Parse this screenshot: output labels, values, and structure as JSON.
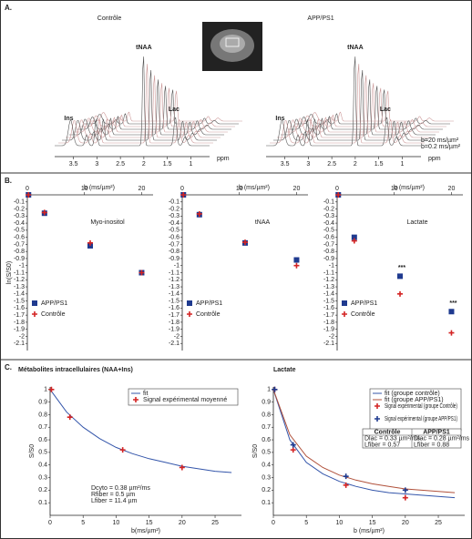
{
  "panel_a": {
    "label": "A.",
    "titles": [
      "Contrôle",
      "APP/PS1"
    ],
    "peaks": [
      "Ins",
      "tNAA",
      "Lac"
    ],
    "x_label": "ppm",
    "xlim": [
      3.9,
      0.6
    ],
    "xticks": [
      3.5,
      3,
      2.5,
      2,
      1.5,
      1
    ],
    "b_labels": [
      "b=20 ms/µm²",
      "b=0.2 ms/µm²"
    ]
  },
  "panel_b": {
    "label": "B."
  },
  "panel_c": {
    "label": "C."
  },
  "chart_data": [
    {
      "type": "scatter",
      "title": "Myo-inositol",
      "x_label": "b (ms/µm²)",
      "y_label": "ln(S/S0)",
      "xlim": [
        0,
        22
      ],
      "xticks": [
        0,
        10,
        20
      ],
      "ylim": [
        -2.2,
        0
      ],
      "yticks": [
        -0.1,
        -0.2,
        -0.3,
        -0.4,
        -0.5,
        -0.6,
        -0.7,
        -0.8,
        -0.9,
        -1,
        -1.1,
        -1.2,
        -1.3,
        -1.4,
        -1.5,
        -1.6,
        -1.7,
        -1.8,
        -1.9,
        -2,
        -2.1
      ],
      "x": [
        0.2,
        3,
        11,
        20
      ],
      "legend": "lower left",
      "series": [
        {
          "name": "APP/PS1",
          "color": "#1f3a8f",
          "marker": "square",
          "values": [
            0,
            -0.26,
            -0.72,
            -1.1
          ]
        },
        {
          "name": "Contrôle",
          "color": "#d42424",
          "marker": "plus",
          "values": [
            0,
            -0.25,
            -0.68,
            -1.1
          ]
        }
      ]
    },
    {
      "type": "scatter",
      "title": "tNAA",
      "x_label": "b (ms/µm²)",
      "xlim": [
        0,
        22
      ],
      "xticks": [
        0,
        10,
        20
      ],
      "ylim": [
        -2.2,
        0
      ],
      "yticks": [
        -0.1,
        -0.2,
        -0.3,
        -0.4,
        -0.5,
        -0.6,
        -0.7,
        -0.8,
        -0.9,
        -1,
        -1.1,
        -1.2,
        -1.3,
        -1.4,
        -1.5,
        -1.6,
        -1.7,
        -1.8,
        -1.9,
        -2,
        -2.1
      ],
      "x": [
        0.2,
        3,
        11,
        20
      ],
      "legend": "lower left",
      "series": [
        {
          "name": "APP/PS1",
          "color": "#1f3a8f",
          "marker": "square",
          "values": [
            0,
            -0.28,
            -0.68,
            -0.92
          ]
        },
        {
          "name": "Contrôle",
          "color": "#d42424",
          "marker": "plus",
          "values": [
            0,
            -0.27,
            -0.67,
            -1.0
          ]
        }
      ]
    },
    {
      "type": "scatter",
      "title": "Lactate",
      "x_label": "b (ms/µm²)",
      "xlim": [
        0,
        22
      ],
      "xticks": [
        0,
        10,
        20
      ],
      "ylim": [
        -2.2,
        0
      ],
      "yticks": [
        -0.1,
        -0.2,
        -0.3,
        -0.4,
        -0.5,
        -0.6,
        -0.7,
        -0.8,
        -0.9,
        -1,
        -1.1,
        -1.2,
        -1.3,
        -1.4,
        -1.5,
        -1.6,
        -1.7,
        -1.8,
        -1.9,
        -2,
        -2.1
      ],
      "x": [
        0.2,
        3,
        11,
        20
      ],
      "legend": "lower left",
      "annotations": [
        "***",
        "***"
      ],
      "series": [
        {
          "name": "APP/PS1",
          "color": "#1f3a8f",
          "marker": "square",
          "values": [
            0,
            -0.6,
            -1.15,
            -1.65
          ]
        },
        {
          "name": "Contrôle",
          "color": "#d42424",
          "marker": "plus",
          "values": [
            0,
            -0.65,
            -1.4,
            -1.95
          ]
        }
      ]
    },
    {
      "type": "line",
      "title": "Métabolites intracellulaires (NAA+Ins)",
      "x_label": "b(ms/µm²)",
      "y_label": "S/S0",
      "xlim": [
        0,
        29
      ],
      "xticks": [
        0,
        5,
        10,
        15,
        20,
        25
      ],
      "ylim": [
        0,
        1.02
      ],
      "yticks": [
        0.1,
        0.2,
        0.3,
        0.4,
        0.5,
        0.6,
        0.7,
        0.8,
        0.9,
        1
      ],
      "legend": "upper right",
      "notes": [
        "Dcyto = 0.38 µm²/ms",
        "Rfiber = 0.5 µm",
        "Lfiber = 11.4 µm"
      ],
      "series": [
        {
          "name": "fit",
          "color": "#3355aa",
          "style": "line",
          "x": [
            0,
            2.5,
            5,
            7.5,
            10,
            12.5,
            15,
            17.5,
            20,
            22.5,
            25,
            27.5
          ],
          "values": [
            1,
            0.82,
            0.7,
            0.61,
            0.54,
            0.49,
            0.45,
            0.42,
            0.39,
            0.37,
            0.35,
            0.34
          ]
        },
        {
          "name": "Signal expérimental moyenné",
          "color": "#d42424",
          "style": "points",
          "marker": "plus",
          "x": [
            0.2,
            3,
            11,
            20
          ],
          "values": [
            1,
            0.78,
            0.52,
            0.38
          ]
        }
      ]
    },
    {
      "type": "line",
      "title": "Lactate",
      "x_label": "b (ms/µm²)",
      "y_label": "S/S0",
      "xlim": [
        0,
        29
      ],
      "xticks": [
        0,
        5,
        10,
        15,
        20,
        25
      ],
      "ylim": [
        0,
        1.02
      ],
      "yticks": [
        0.1,
        0.2,
        0.3,
        0.4,
        0.5,
        0.6,
        0.7,
        0.8,
        0.9,
        1
      ],
      "legend": "upper right",
      "table": {
        "header": [
          "Contrôle",
          "APP/PS1"
        ],
        "rows": [
          [
            "Dlac = 0.33 µm²/ms",
            "Dlac = 0.28 µm²/ms"
          ],
          [
            "Lfiber = 0.57",
            "Lfiber = 0.88"
          ]
        ]
      },
      "series": [
        {
          "name": "fit (groupe contrôle)",
          "color": "#3355aa",
          "style": "line",
          "x": [
            0,
            2.5,
            5,
            7.5,
            10,
            12.5,
            15,
            17.5,
            20,
            22.5,
            25,
            27.5
          ],
          "values": [
            1,
            0.6,
            0.42,
            0.33,
            0.27,
            0.23,
            0.2,
            0.18,
            0.17,
            0.16,
            0.15,
            0.14
          ]
        },
        {
          "name": "fit (groupe APP/PS1)",
          "color": "#b0503a",
          "style": "line",
          "x": [
            0,
            2.5,
            5,
            7.5,
            10,
            12.5,
            15,
            17.5,
            20,
            22.5,
            25,
            27.5
          ],
          "values": [
            1,
            0.64,
            0.47,
            0.38,
            0.32,
            0.28,
            0.25,
            0.23,
            0.21,
            0.2,
            0.19,
            0.18
          ]
        },
        {
          "name": "Signal expérimental (groupe Contrôle)",
          "color": "#d42424",
          "style": "points",
          "marker": "plus",
          "x": [
            0.2,
            3,
            11,
            20
          ],
          "values": [
            1,
            0.52,
            0.24,
            0.14
          ]
        },
        {
          "name": "Signal expérimental (groupe APP/PS1)",
          "color": "#1f3a8f",
          "style": "points",
          "marker": "plus",
          "x": [
            0.2,
            3,
            11,
            20
          ],
          "values": [
            1,
            0.56,
            0.31,
            0.2
          ]
        }
      ]
    }
  ]
}
